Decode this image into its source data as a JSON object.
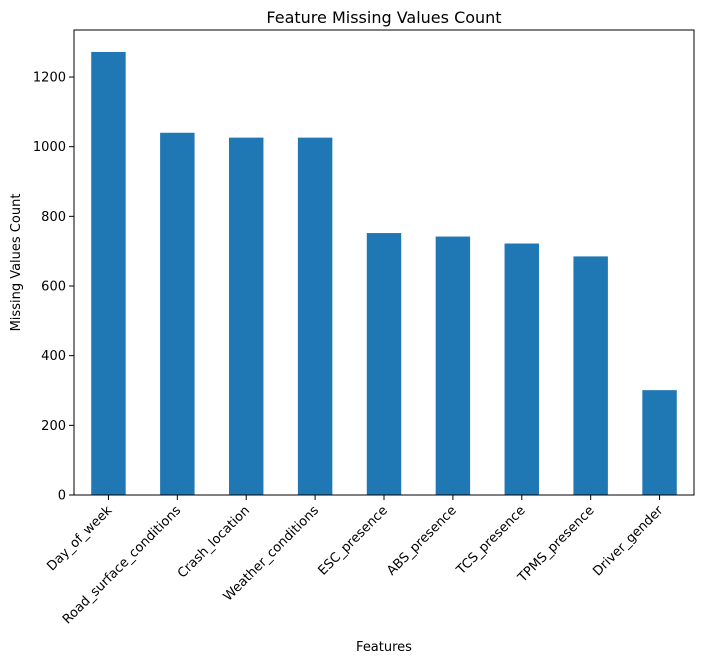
{
  "chart_data": {
    "type": "bar",
    "title": "Feature Missing Values Count",
    "xlabel": "Features",
    "ylabel": "Missing Values Count",
    "categories": [
      "Day_of_week",
      "Road_surface_conditions",
      "Crash_location",
      "Weather_conditions",
      "ESC_presence",
      "ABS_presence",
      "TCS_presence",
      "TPMS_presence",
      "Driver_gender"
    ],
    "values": [
      1272,
      1040,
      1026,
      1026,
      752,
      742,
      722,
      685,
      301
    ],
    "ylim": [
      0,
      1335
    ],
    "yticks": [
      0,
      200,
      400,
      600,
      800,
      1000,
      1200
    ],
    "grid": false,
    "legend": "none",
    "bar_color": "#1f77b4"
  }
}
